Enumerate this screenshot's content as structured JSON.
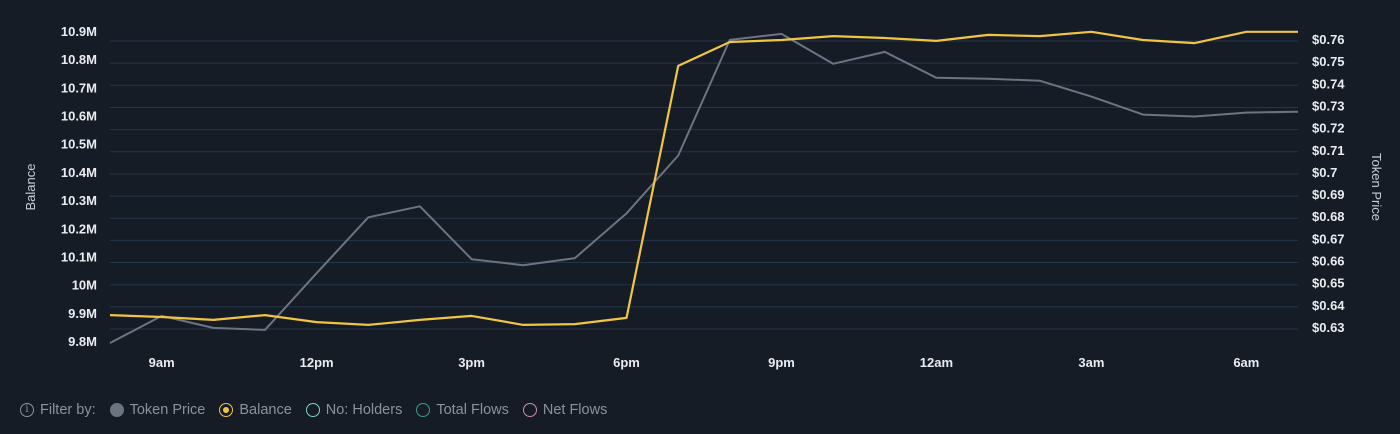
{
  "chart_data": {
    "type": "line",
    "title": "",
    "xlabel": "",
    "ylabel": "Balance",
    "y2label": "Token Price",
    "x_tick_labels": [
      "9am",
      "12pm",
      "3pm",
      "6pm",
      "9pm",
      "12am",
      "3am",
      "6am"
    ],
    "x": [
      "8am",
      "9am",
      "10am",
      "11am",
      "12pm",
      "1pm",
      "2pm",
      "3pm",
      "4pm",
      "5pm",
      "6pm",
      "7pm",
      "8pm",
      "9pm",
      "10pm",
      "11pm",
      "12am",
      "1am",
      "2am",
      "3am",
      "4am",
      "5am",
      "6am",
      "7am"
    ],
    "y_left_ticks": [
      "9.8M",
      "9.9M",
      "10M",
      "10.1M",
      "10.2M",
      "10.3M",
      "10.4M",
      "10.5M",
      "10.6M",
      "10.7M",
      "10.8M",
      "10.9M"
    ],
    "y_right_ticks": [
      "$0.63",
      "$0.64",
      "$0.65",
      "$0.66",
      "$0.67",
      "$0.68",
      "$0.69",
      "$0.7",
      "$0.71",
      "$0.72",
      "$0.73",
      "$0.74",
      "$0.75",
      "$0.76"
    ],
    "ylim": [
      9.8,
      10.9
    ],
    "y2lim": [
      0.63,
      0.76
    ],
    "grid": true,
    "legend_position": "bottom",
    "series": [
      {
        "name": "Balance",
        "axis": "left",
        "unit": "M",
        "color": "#f0c544",
        "values": [
          9.892,
          9.885,
          9.875,
          9.892,
          9.867,
          9.857,
          9.875,
          9.889,
          9.857,
          9.86,
          9.882,
          10.776,
          10.861,
          10.868,
          10.882,
          10.875,
          10.865,
          10.886,
          10.882,
          10.897,
          10.868,
          10.857,
          10.897,
          10.897
        ]
      },
      {
        "name": "Token Price",
        "axis": "right",
        "unit": "$",
        "color": "#6b7480",
        "values": [
          0.6237,
          0.6359,
          0.6305,
          0.6296,
          0.6552,
          0.6804,
          0.6854,
          0.6615,
          0.6588,
          0.662,
          0.6822,
          0.7083,
          0.7605,
          0.7632,
          0.7497,
          0.7551,
          0.7434,
          0.743,
          0.7421,
          0.7349,
          0.7268,
          0.7259,
          0.7277,
          0.7281
        ]
      }
    ]
  },
  "axes": {
    "left_title": "Balance",
    "right_title": "Token Price"
  },
  "legend": {
    "lead_label": "Filter by:",
    "lead_icon": "info-icon",
    "items": [
      {
        "label": "Token Price",
        "style": "filled",
        "color": "#6b7480",
        "active": true
      },
      {
        "label": "Balance",
        "style": "selected",
        "color": "#f0c544",
        "active": true
      },
      {
        "label": "No: Holders",
        "style": "ring",
        "color": "#7fd3c4",
        "active": false
      },
      {
        "label": "Total Flows",
        "style": "ring",
        "color": "#3a9c85",
        "active": false
      },
      {
        "label": "Net Flows",
        "style": "ring",
        "color": "#d18ab4",
        "active": false
      }
    ]
  },
  "colors": {
    "background": "#161c26",
    "gridline": "#24354a",
    "balance": "#f0c544",
    "token_price": "#6b7480"
  }
}
